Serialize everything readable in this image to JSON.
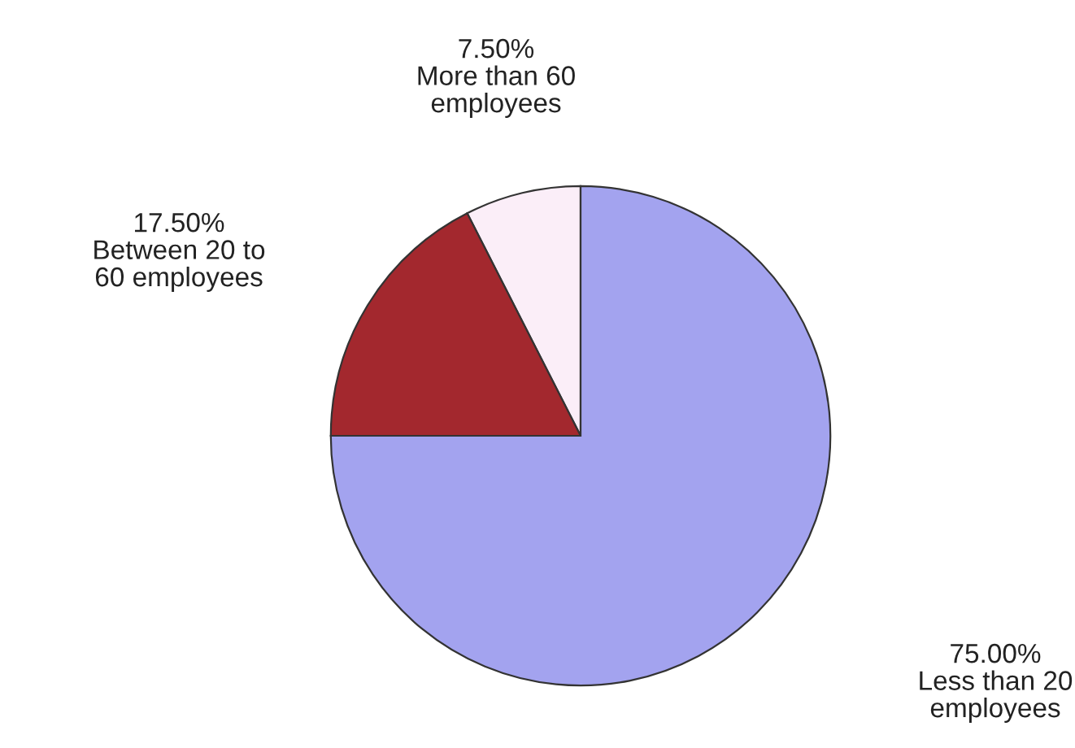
{
  "chart_data": {
    "type": "pie",
    "categories": [
      "More than 60\nemployees",
      "Between 20 to\n60 employees",
      "Less than 20\nemployees"
    ],
    "values": [
      7.5,
      17.5,
      75
    ],
    "value_labels": [
      "7.50%",
      "17.50%",
      "75.00%"
    ],
    "colors": [
      "#fbeef8",
      "#a3282e",
      "#a3a3ef"
    ]
  }
}
